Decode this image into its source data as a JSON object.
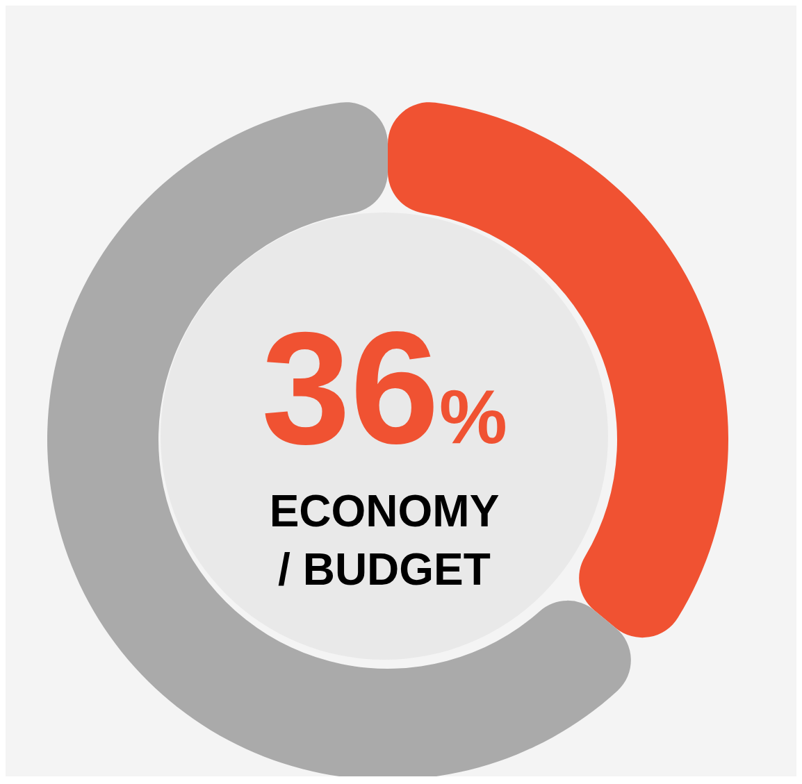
{
  "chart_data": {
    "type": "donut",
    "title": "ECONOMY / BUDGET",
    "categories": [
      null,
      null
    ],
    "values": [
      36,
      64
    ],
    "colors": [
      "#f05232",
      "#aaaaaa"
    ],
    "value_labels": [
      "36%",
      null
    ]
  }
}
